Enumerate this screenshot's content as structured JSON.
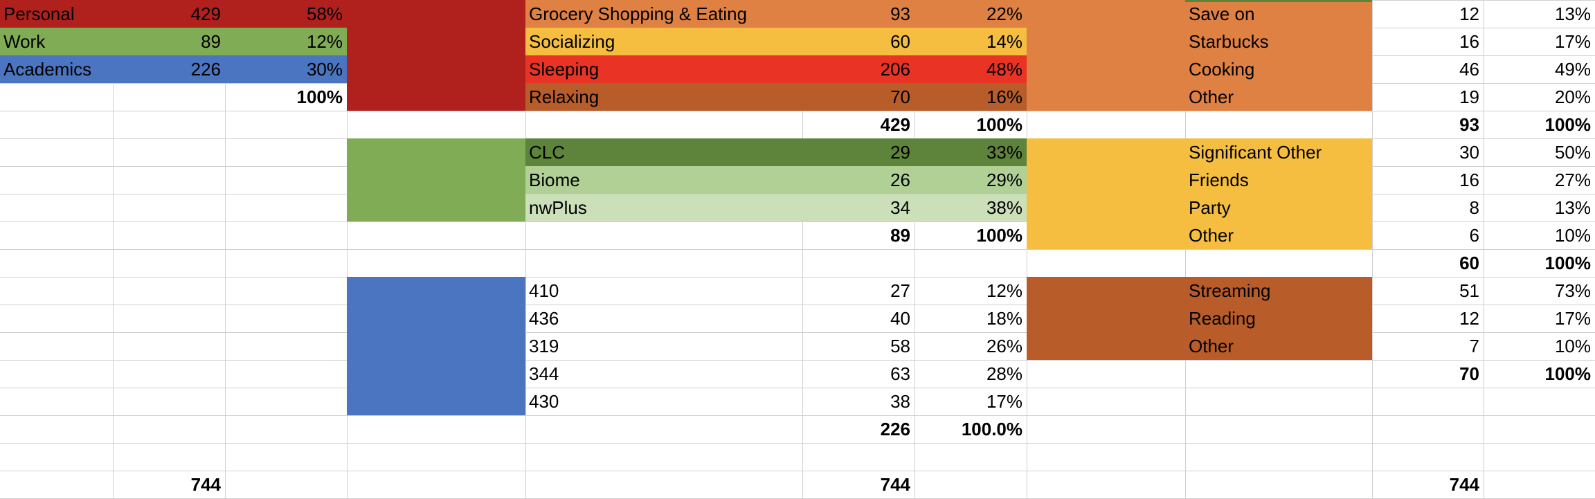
{
  "colors": {
    "personal": "#b0211e",
    "work": "#7fac55",
    "academics": "#4b74c1",
    "grocery": "#e08144",
    "socializing": "#f5be41",
    "sleeping": "#e93324",
    "relaxing": "#b85c29",
    "clc": "#5e833b",
    "biome": "#b0d096",
    "nwplus": "#cbe0b8",
    "gridline": "#d0d0d0"
  },
  "summary": {
    "rows": [
      {
        "label": "Personal",
        "value": "429",
        "pct": "58%",
        "color": "personal"
      },
      {
        "label": "Work",
        "value": "89",
        "pct": "12%",
        "color": "work"
      },
      {
        "label": "Academics",
        "value": "226",
        "pct": "30%",
        "color": "academics"
      }
    ],
    "total_pct": "100%",
    "grand_total": "744"
  },
  "personal_block": {
    "rows": [
      {
        "label": "Grocery Shopping & Eating",
        "value": "93",
        "pct": "22%",
        "color": "grocery"
      },
      {
        "label": "Socializing",
        "value": "60",
        "pct": "14%",
        "color": "socializing"
      },
      {
        "label": "Sleeping",
        "value": "206",
        "pct": "48%",
        "color": "sleeping"
      },
      {
        "label": "Relaxing",
        "value": "70",
        "pct": "16%",
        "color": "relaxing"
      }
    ],
    "total": "429",
    "total_pct": "100%"
  },
  "work_block": {
    "rows": [
      {
        "label": "CLC",
        "value": "29",
        "pct": "33%",
        "color": "clc"
      },
      {
        "label": "Biome",
        "value": "26",
        "pct": "29%",
        "color": "biome"
      },
      {
        "label": "nwPlus",
        "value": "34",
        "pct": "38%",
        "color": "nwplus"
      }
    ],
    "total": "89",
    "total_pct": "100%"
  },
  "academics_block": {
    "rows": [
      {
        "label": "410",
        "value": "27",
        "pct": "12%"
      },
      {
        "label": "436",
        "value": "40",
        "pct": "18%"
      },
      {
        "label": "319",
        "value": "58",
        "pct": "26%"
      },
      {
        "label": "344",
        "value": "63",
        "pct": "28%"
      },
      {
        "label": "430",
        "value": "38",
        "pct": "17%"
      }
    ],
    "total": "226",
    "total_pct": "100.0%"
  },
  "middle_grand_total": "744",
  "grocery_block": {
    "rows": [
      {
        "label": "Save on",
        "value": "12",
        "pct": "13%"
      },
      {
        "label": "Starbucks",
        "value": "16",
        "pct": "17%"
      },
      {
        "label": "Cooking",
        "value": "46",
        "pct": "49%"
      },
      {
        "label": "Other",
        "value": "19",
        "pct": "20%"
      }
    ],
    "total": "93",
    "total_pct": "100%"
  },
  "social_block": {
    "rows": [
      {
        "label": "Significant Other",
        "value": "30",
        "pct": "50%"
      },
      {
        "label": "Friends",
        "value": "16",
        "pct": "27%"
      },
      {
        "label": "Party",
        "value": "8",
        "pct": "13%"
      },
      {
        "label": "Other",
        "value": "6",
        "pct": "10%"
      }
    ],
    "total": "60",
    "total_pct": "100%"
  },
  "relax_block": {
    "rows": [
      {
        "label": "Streaming",
        "value": "51",
        "pct": "73%"
      },
      {
        "label": "Reading",
        "value": "12",
        "pct": "17%"
      },
      {
        "label": "Other",
        "value": "7",
        "pct": "10%"
      }
    ],
    "total": "70",
    "total_pct": "100%"
  },
  "right_grand_total": "744"
}
